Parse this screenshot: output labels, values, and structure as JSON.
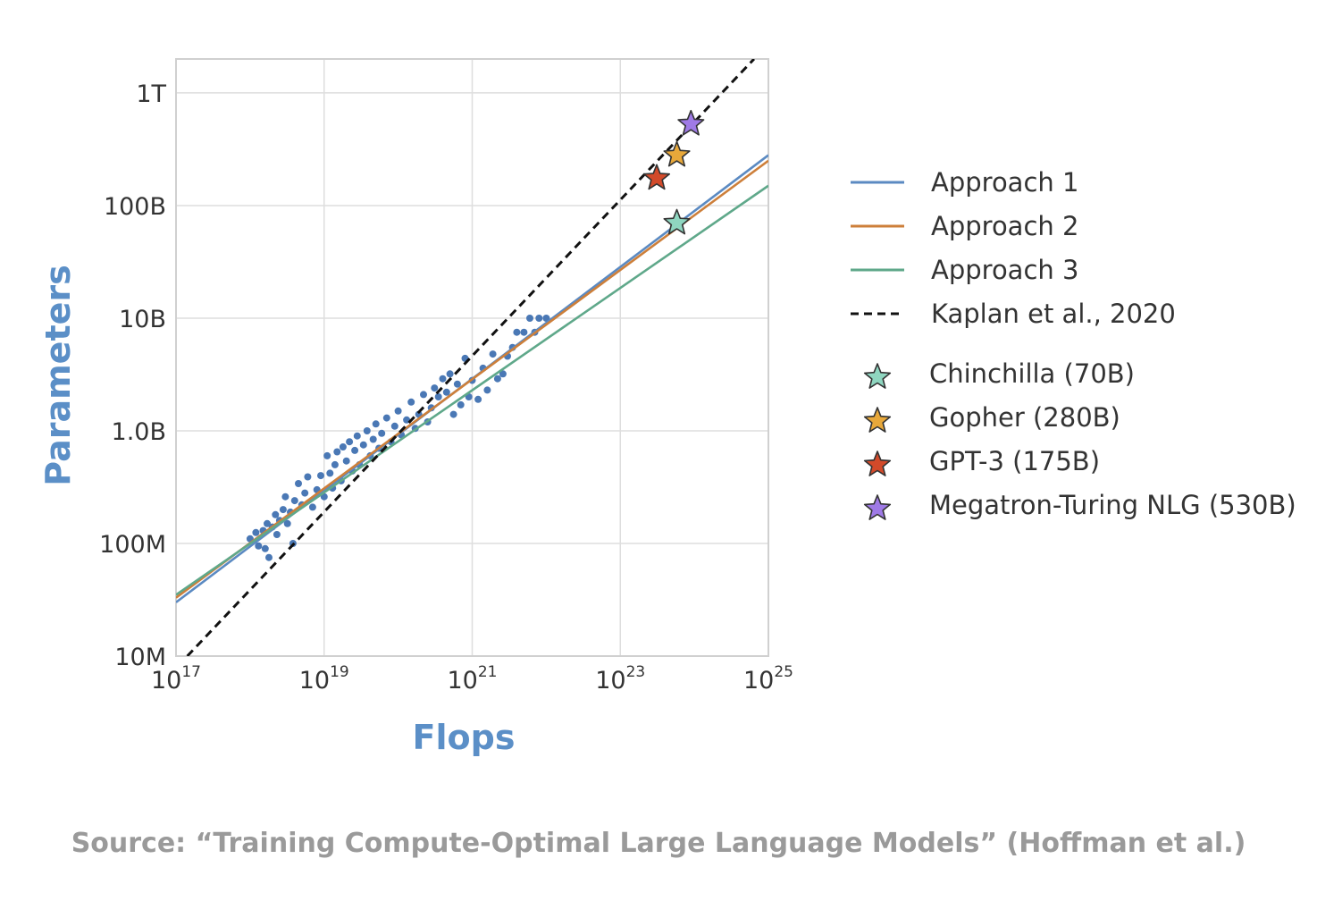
{
  "source": "Source: “Training Compute-Optimal Large Language Models” (Hoffman et al.)",
  "chart_data": {
    "type": "scatter",
    "xlabel": "Flops",
    "ylabel": "Parameters",
    "x_scale": "log",
    "y_scale": "log",
    "xlim": [
      1e+17,
      1e+25
    ],
    "ylim": [
      10000000.0,
      2000000000000.0
    ],
    "grid": true,
    "x_ticks": [
      {
        "value": 1e+17,
        "base": "10",
        "exp": "17"
      },
      {
        "value": 1e+19,
        "base": "10",
        "exp": "19"
      },
      {
        "value": 1e+21,
        "base": "10",
        "exp": "21"
      },
      {
        "value": 1e+23,
        "base": "10",
        "exp": "23"
      },
      {
        "value": 1e+25,
        "base": "10",
        "exp": "25"
      }
    ],
    "y_ticks": [
      {
        "value": 10000000.0,
        "label": "10M"
      },
      {
        "value": 100000000.0,
        "label": "100M"
      },
      {
        "value": 1000000000.0,
        "label": "1.0B"
      },
      {
        "value": 10000000000.0,
        "label": "10B"
      },
      {
        "value": 100000000000.0,
        "label": "100B"
      },
      {
        "value": 1000000000000.0,
        "label": "1T"
      }
    ],
    "scatter_color": "#4a78b5",
    "scatter_points": [
      [
        1e+18,
        110000000.0
      ],
      [
        1.2e+18,
        125000000.0
      ],
      [
        1.3e+18,
        95000000.0
      ],
      [
        1.5e+18,
        130000000.0
      ],
      [
        1.6e+18,
        90000000.0
      ],
      [
        1.7e+18,
        150000000.0
      ],
      [
        1.8e+18,
        75000000.0
      ],
      [
        2e+18,
        140000000.0
      ],
      [
        2.2e+18,
        180000000.0
      ],
      [
        2.3e+18,
        120000000.0
      ],
      [
        2.5e+18,
        160000000.0
      ],
      [
        2.8e+18,
        200000000.0
      ],
      [
        3e+18,
        260000000.0
      ],
      [
        3.2e+18,
        150000000.0
      ],
      [
        3.5e+18,
        190000000.0
      ],
      [
        3.8e+18,
        100000000.0
      ],
      [
        4e+18,
        240000000.0
      ],
      [
        4.5e+18,
        340000000.0
      ],
      [
        5e+18,
        220000000.0
      ],
      [
        5.5e+18,
        280000000.0
      ],
      [
        6e+18,
        390000000.0
      ],
      [
        7e+18,
        210000000.0
      ],
      [
        8e+18,
        300000000.0
      ],
      [
        9e+18,
        400000000.0
      ],
      [
        1e+19,
        260000000.0
      ],
      [
        1.1e+19,
        600000000.0
      ],
      [
        1.2e+19,
        420000000.0
      ],
      [
        1.3e+19,
        310000000.0
      ],
      [
        1.4e+19,
        500000000.0
      ],
      [
        1.5e+19,
        650000000.0
      ],
      [
        1.7e+19,
        360000000.0
      ],
      [
        1.8e+19,
        720000000.0
      ],
      [
        2e+19,
        540000000.0
      ],
      [
        2.2e+19,
        800000000.0
      ],
      [
        2.4e+19,
        440000000.0
      ],
      [
        2.6e+19,
        670000000.0
      ],
      [
        2.8e+19,
        900000000.0
      ],
      [
        3e+19,
        500000000.0
      ],
      [
        3.4e+19,
        750000000.0
      ],
      [
        3.8e+19,
        1000000000.0
      ],
      [
        4.2e+19,
        600000000.0
      ],
      [
        4.6e+19,
        840000000.0
      ],
      [
        5e+19,
        1150000000.0
      ],
      [
        5.5e+19,
        700000000.0
      ],
      [
        6e+19,
        950000000.0
      ],
      [
        7e+19,
        1300000000.0
      ],
      [
        8e+19,
        800000000.0
      ],
      [
        9e+19,
        1100000000.0
      ],
      [
        1e+20,
        1500000000.0
      ],
      [
        1.1e+20,
        920000000.0
      ],
      [
        1.3e+20,
        1250000000.0
      ],
      [
        1.5e+20,
        1800000000.0
      ],
      [
        1.7e+20,
        1050000000.0
      ],
      [
        1.9e+20,
        1400000000.0
      ],
      [
        2.2e+20,
        2100000000.0
      ],
      [
        2.5e+20,
        1200000000.0
      ],
      [
        2.8e+20,
        1600000000.0
      ],
      [
        3.1e+20,
        2400000000.0
      ],
      [
        3.5e+20,
        2000000000.0
      ],
      [
        4e+20,
        2900000000.0
      ],
      [
        4.5e+20,
        2200000000.0
      ],
      [
        5e+20,
        3200000000.0
      ],
      [
        5.6e+20,
        1400000000.0
      ],
      [
        6.3e+20,
        2600000000.0
      ],
      [
        7e+20,
        1700000000.0
      ],
      [
        8e+20,
        4400000000.0
      ],
      [
        9e+20,
        2000000000.0
      ],
      [
        1e+21,
        2800000000.0
      ],
      [
        1.2e+21,
        1900000000.0
      ],
      [
        1.4e+21,
        3600000000.0
      ],
      [
        1.6e+21,
        2300000000.0
      ],
      [
        1.9e+21,
        4800000000.0
      ],
      [
        2.2e+21,
        2900000000.0
      ],
      [
        2.6e+21,
        3200000000.0
      ],
      [
        3e+21,
        4600000000.0
      ],
      [
        3.5e+21,
        5500000000.0
      ],
      [
        4e+21,
        7500000000.0
      ],
      [
        5e+21,
        7500000000.0
      ],
      [
        6e+21,
        10000000000.0
      ],
      [
        7e+21,
        7500000000.0
      ],
      [
        8e+21,
        10000000000.0
      ],
      [
        1e+22,
        10000000000.0
      ]
    ],
    "series": [
      {
        "name": "Approach 1",
        "color": "#5b8ac2",
        "x": [
          1e+17,
          1e+25
        ],
        "y": [
          30000000.0,
          280000000000.0
        ]
      },
      {
        "name": "Approach 2",
        "color": "#cd7f3a",
        "x": [
          1e+17,
          1e+25
        ],
        "y": [
          33000000.0,
          250000000000.0
        ]
      },
      {
        "name": "Approach 3",
        "color": "#5fa88a",
        "x": [
          1e+17,
          1e+25
        ],
        "y": [
          35000000.0,
          150000000000.0
        ]
      },
      {
        "name": "Kaplan et al., 2020",
        "color": "#111111",
        "dashed": true,
        "x": [
          1.42e+17,
          6.4e+24
        ],
        "y": [
          10000000.0,
          2000000000000.0
        ]
      }
    ],
    "models": [
      {
        "name": "Chinchilla (70B)",
        "flops": 5.8e+23,
        "params": 70000000000.0,
        "color": "#8fd6c0"
      },
      {
        "name": "Gopher (280B)",
        "flops": 5.8e+23,
        "params": 280000000000.0,
        "color": "#e8a83a"
      },
      {
        "name": "GPT-3 (175B)",
        "flops": 3.1e+23,
        "params": 175000000000.0,
        "color": "#d24a2a"
      },
      {
        "name": "Megatron-Turing NLG (530B)",
        "flops": 9e+23,
        "params": 530000000000.0,
        "color": "#9f7ae6"
      }
    ],
    "legend_position": "right"
  }
}
